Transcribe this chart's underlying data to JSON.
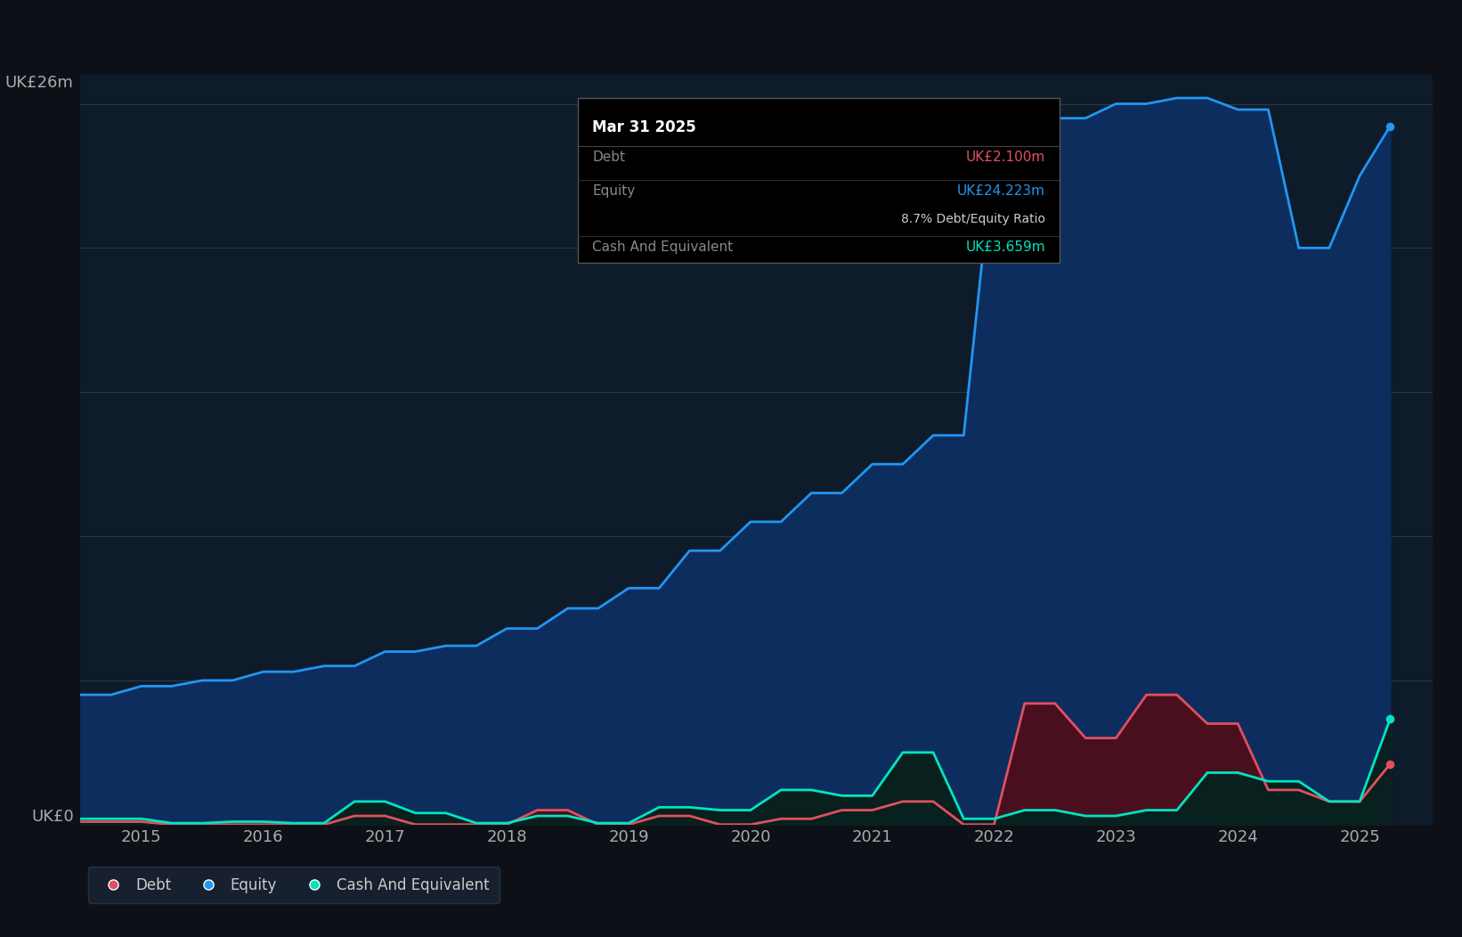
{
  "bg_color": "#0d1117",
  "plot_bg_color": "#0d1b2a",
  "grid_color": "#2a3a4a",
  "ylabel_text": "UK£26m",
  "ylabel0_text": "UK£0",
  "ylim": [
    0,
    26
  ],
  "xlim_start": 2014.5,
  "xlim_end": 2025.6,
  "xticks": [
    2015,
    2016,
    2017,
    2018,
    2019,
    2020,
    2021,
    2022,
    2023,
    2024,
    2025
  ],
  "equity_color": "#2196f3",
  "equity_fill": "#0d2d5e",
  "debt_color": "#e05060",
  "debt_fill": "#4a0f1e",
  "cash_color": "#00e5c0",
  "cash_fill": "#08201e",
  "equity_x": [
    2014.5,
    2014.75,
    2015.0,
    2015.25,
    2015.5,
    2015.75,
    2016.0,
    2016.25,
    2016.5,
    2016.75,
    2017.0,
    2017.25,
    2017.5,
    2017.75,
    2018.0,
    2018.25,
    2018.5,
    2018.75,
    2019.0,
    2019.25,
    2019.5,
    2019.75,
    2020.0,
    2020.25,
    2020.5,
    2020.75,
    2021.0,
    2021.25,
    2021.5,
    2021.75,
    2022.0,
    2022.25,
    2022.5,
    2022.75,
    2023.0,
    2023.25,
    2023.5,
    2023.75,
    2024.0,
    2024.25,
    2024.5,
    2024.75,
    2025.0,
    2025.25
  ],
  "equity_y": [
    4.5,
    4.5,
    4.8,
    4.8,
    5.0,
    5.0,
    5.3,
    5.3,
    5.5,
    5.5,
    6.0,
    6.0,
    6.2,
    6.2,
    6.8,
    6.8,
    7.5,
    7.5,
    8.2,
    8.2,
    9.5,
    9.5,
    10.5,
    10.5,
    11.5,
    11.5,
    12.5,
    12.5,
    13.5,
    13.5,
    23.5,
    23.5,
    24.5,
    24.5,
    25.0,
    25.0,
    25.2,
    25.2,
    24.8,
    24.8,
    20.0,
    20.0,
    22.5,
    24.223
  ],
  "debt_x": [
    2014.5,
    2015.0,
    2015.25,
    2015.5,
    2015.75,
    2016.0,
    2016.25,
    2016.5,
    2016.75,
    2017.0,
    2017.25,
    2017.5,
    2017.75,
    2018.0,
    2018.25,
    2018.5,
    2018.75,
    2019.0,
    2019.25,
    2019.5,
    2019.75,
    2020.0,
    2020.25,
    2020.5,
    2020.75,
    2021.0,
    2021.25,
    2021.5,
    2021.75,
    2022.0,
    2022.25,
    2022.5,
    2022.75,
    2023.0,
    2023.25,
    2023.5,
    2023.75,
    2024.0,
    2024.25,
    2024.5,
    2024.75,
    2025.0,
    2025.25
  ],
  "debt_y": [
    0.1,
    0.1,
    0.0,
    0.0,
    0.0,
    0.0,
    0.0,
    0.0,
    0.3,
    0.3,
    0.0,
    0.0,
    0.0,
    0.0,
    0.5,
    0.5,
    0.0,
    0.0,
    0.3,
    0.3,
    0.0,
    0.0,
    0.2,
    0.2,
    0.5,
    0.5,
    0.8,
    0.8,
    0.0,
    0.0,
    4.2,
    4.2,
    3.0,
    3.0,
    4.5,
    4.5,
    3.5,
    3.5,
    1.2,
    1.2,
    0.8,
    0.8,
    2.1
  ],
  "cash_x": [
    2014.5,
    2015.0,
    2015.25,
    2015.5,
    2015.75,
    2016.0,
    2016.25,
    2016.5,
    2016.75,
    2017.0,
    2017.25,
    2017.5,
    2017.75,
    2018.0,
    2018.25,
    2018.5,
    2018.75,
    2019.0,
    2019.25,
    2019.5,
    2019.75,
    2020.0,
    2020.25,
    2020.5,
    2020.75,
    2021.0,
    2021.25,
    2021.5,
    2021.75,
    2022.0,
    2022.25,
    2022.5,
    2022.75,
    2023.0,
    2023.25,
    2023.5,
    2023.75,
    2024.0,
    2024.25,
    2024.5,
    2024.75,
    2025.0,
    2025.25
  ],
  "cash_y": [
    0.2,
    0.2,
    0.05,
    0.05,
    0.1,
    0.1,
    0.05,
    0.05,
    0.8,
    0.8,
    0.4,
    0.4,
    0.05,
    0.05,
    0.3,
    0.3,
    0.05,
    0.05,
    0.6,
    0.6,
    0.5,
    0.5,
    1.2,
    1.2,
    1.0,
    1.0,
    2.5,
    2.5,
    0.2,
    0.2,
    0.5,
    0.5,
    0.3,
    0.3,
    0.5,
    0.5,
    1.8,
    1.8,
    1.5,
    1.5,
    0.8,
    0.8,
    3.659
  ],
  "tooltip_title": "Mar 31 2025",
  "tooltip_debt_label": "Debt",
  "tooltip_debt_value": "UK£2.100m",
  "tooltip_equity_label": "Equity",
  "tooltip_equity_value": "UK£24.223m",
  "tooltip_ratio": "8.7% Debt/Equity Ratio",
  "tooltip_cash_label": "Cash And Equivalent",
  "tooltip_cash_value": "UK£3.659m",
  "legend_debt": "Debt",
  "legend_equity": "Equity",
  "legend_cash": "Cash And Equivalent"
}
